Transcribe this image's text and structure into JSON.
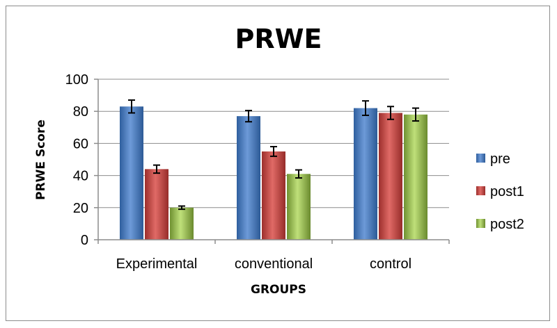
{
  "chart_data": {
    "type": "bar",
    "title": "PRWE",
    "xlabel": "GROUPS",
    "ylabel": "PRWE Score",
    "categories": [
      "Experimental",
      "conventional",
      "control"
    ],
    "ylim": [
      0,
      100
    ],
    "yticks": [
      0,
      20,
      40,
      60,
      80,
      100
    ],
    "grid": true,
    "legend_position": "right",
    "series": [
      {
        "name": "pre",
        "values": [
          83,
          77,
          82
        ],
        "errors": [
          4,
          3.5,
          4.5
        ],
        "color": "#4a7ebb"
      },
      {
        "name": "post1",
        "values": [
          44,
          55,
          79
        ],
        "errors": [
          2.5,
          3,
          4
        ],
        "color": "#c0504d"
      },
      {
        "name": "post2",
        "values": [
          20,
          41,
          78
        ],
        "errors": [
          1,
          2.5,
          4
        ],
        "color": "#9bbb59"
      }
    ]
  }
}
